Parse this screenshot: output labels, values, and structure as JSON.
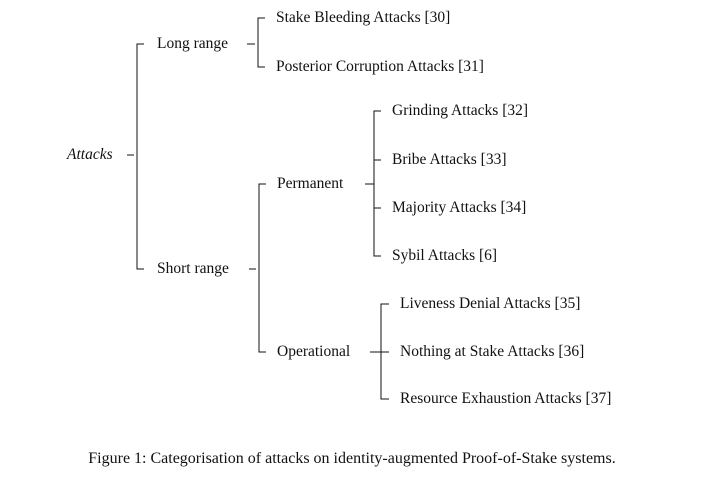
{
  "diagram": {
    "root": "Attacks",
    "groups": {
      "long_range": {
        "label": "Long range",
        "leaves": [
          "Stake Bleeding Attacks [30]",
          "Posterior Corruption Attacks [31]"
        ]
      },
      "short_range": {
        "label": "Short range",
        "permanent": {
          "label": "Permanent",
          "leaves": [
            "Grinding Attacks [32]",
            "Bribe Attacks [33]",
            "Majority Attacks [34]",
            "Sybil Attacks [6]"
          ]
        },
        "operational": {
          "label": "Operational",
          "leaves": [
            "Liveness Denial Attacks [35]",
            "Nothing at Stake Attacks [36]",
            "Resource Exhaustion Attacks [37]"
          ]
        }
      }
    },
    "caption": "Figure 1: Categorisation of attacks on identity-augmented Proof-of-Stake systems."
  }
}
